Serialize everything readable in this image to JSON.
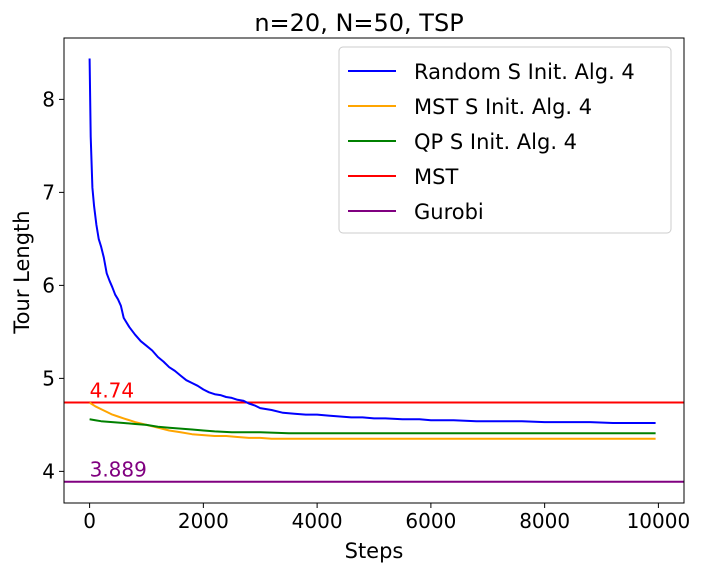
{
  "chart_data": {
    "type": "line",
    "title": "n=20, N=50, TSP",
    "xlabel": "Steps",
    "ylabel": "Tour Length",
    "xlim": [
      -450,
      10450
    ],
    "ylim": [
      3.66,
      8.66
    ],
    "xticks": [
      0,
      2000,
      4000,
      6000,
      8000,
      10000
    ],
    "yticks": [
      4,
      5,
      6,
      7,
      8
    ],
    "xtick_labels": [
      "0",
      "2000",
      "4000",
      "6000",
      "8000",
      "10000"
    ],
    "ytick_labels": [
      "4",
      "5",
      "6",
      "7",
      "8"
    ],
    "legend_position": "top-right",
    "series": [
      {
        "name": "Random S Init. Alg. 4",
        "color": "#0000ff",
        "x": [
          0,
          20,
          50,
          80,
          120,
          160,
          200,
          250,
          300,
          350,
          400,
          450,
          500,
          550,
          600,
          700,
          800,
          900,
          1000,
          1100,
          1200,
          1300,
          1400,
          1500,
          1600,
          1700,
          1800,
          1900,
          2000,
          2100,
          2200,
          2300,
          2400,
          2500,
          2600,
          2700,
          2800,
          2900,
          3000,
          3200,
          3400,
          3600,
          3800,
          4000,
          4200,
          4400,
          4600,
          4800,
          5000,
          5200,
          5500,
          5800,
          6000,
          6400,
          6800,
          7200,
          7600,
          8000,
          8400,
          8800,
          9200,
          9600,
          9950
        ],
        "y": [
          8.44,
          7.6,
          7.05,
          6.85,
          6.65,
          6.5,
          6.42,
          6.3,
          6.13,
          6.05,
          5.98,
          5.9,
          5.85,
          5.78,
          5.65,
          5.55,
          5.47,
          5.4,
          5.35,
          5.3,
          5.23,
          5.18,
          5.12,
          5.08,
          5.03,
          4.98,
          4.95,
          4.92,
          4.88,
          4.85,
          4.83,
          4.82,
          4.8,
          4.79,
          4.77,
          4.76,
          4.73,
          4.71,
          4.68,
          4.66,
          4.63,
          4.62,
          4.61,
          4.61,
          4.6,
          4.59,
          4.58,
          4.58,
          4.57,
          4.57,
          4.56,
          4.56,
          4.55,
          4.55,
          4.54,
          4.54,
          4.54,
          4.53,
          4.53,
          4.53,
          4.52,
          4.52,
          4.52
        ]
      },
      {
        "name": "MST S Init. Alg. 4",
        "color": "#ffa500",
        "x": [
          0,
          100,
          200,
          300,
          400,
          500,
          600,
          800,
          1000,
          1200,
          1400,
          1600,
          1800,
          2000,
          2200,
          2400,
          2600,
          2800,
          3000,
          3200,
          3400,
          3600,
          3800,
          4000,
          5000,
          6000,
          7000,
          8000,
          9000,
          9950
        ],
        "y": [
          4.74,
          4.7,
          4.67,
          4.64,
          4.61,
          4.59,
          4.57,
          4.53,
          4.5,
          4.47,
          4.44,
          4.42,
          4.4,
          4.39,
          4.38,
          4.38,
          4.37,
          4.36,
          4.36,
          4.35,
          4.35,
          4.35,
          4.35,
          4.35,
          4.35,
          4.35,
          4.35,
          4.35,
          4.35,
          4.35
        ]
      },
      {
        "name": "QP S Init. Alg. 4",
        "color": "#008000",
        "x": [
          0,
          100,
          200,
          400,
          600,
          800,
          1000,
          1200,
          1400,
          1600,
          1800,
          2000,
          2200,
          2500,
          3000,
          3500,
          4000,
          5000,
          6000,
          7000,
          8000,
          9000,
          9950
        ],
        "y": [
          4.56,
          4.55,
          4.54,
          4.53,
          4.52,
          4.51,
          4.5,
          4.48,
          4.47,
          4.46,
          4.45,
          4.44,
          4.43,
          4.42,
          4.42,
          4.41,
          4.41,
          4.41,
          4.41,
          4.41,
          4.41,
          4.41,
          4.41
        ]
      }
    ],
    "hlines": [
      {
        "name": "MST",
        "color": "#ff0000",
        "y": 4.74,
        "label": "4.74"
      },
      {
        "name": "Gurobi",
        "color": "#800080",
        "y": 3.889,
        "label": "3.889"
      }
    ]
  }
}
